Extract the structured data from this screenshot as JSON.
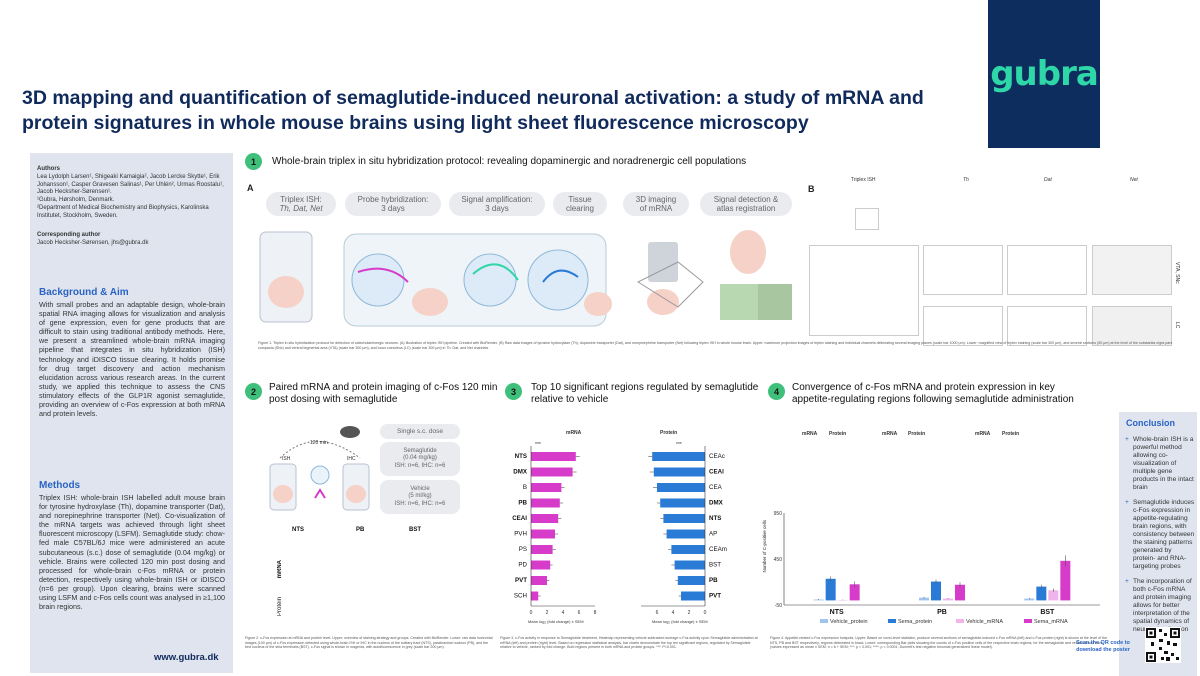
{
  "logo": {
    "text": "gubra"
  },
  "title": "3D mapping and quantification of semaglutide-induced neuronal activation: a study of mRNA and protein signatures in whole mouse brains using light sheet fluorescence microscopy",
  "sidebar": {
    "authors_head": "Authors",
    "authors": "Lea Lydolph Larsen¹, Shigeaki Kamaigia², Jacob Lercke Skytte¹, Erik Johansson¹, Casper Gravesen Salinas¹, Per Uhlén², Urmas Roostalu¹, Jacob Hecksher-Sørensen¹.",
    "affil1": "¹Gubra, Hørsholm, Denmark.",
    "affil2": "²Department of Medical Biochemistry and Biophysics, Karolinska Institutet, Stockholm, Sweden.",
    "corr_head": "Corresponding author",
    "corr": "Jacob Hecksher-Sørensen, jhs@gubra.dk",
    "bg_head": "Background & Aim",
    "bg_body": "With small probes and an adaptable design, whole-brain spatial RNA imaging allows for visualization and analysis of gene expression, even for gene products that are difficult to stain using traditional antibody methods. Here, we present a streamlined whole-brain mRNA imaging pipeline that integrates in situ hybridization (ISH) technology and iDISCO tissue clearing. It holds promise for drug target discovery and action mechanism elucidation across various research areas. In the current study, we applied this technique to assess the CNS stimulatory effects of the GLP1R agonist semaglutide, providing an overview of c-Fos expression at both mRNA and protein levels.",
    "methods_head": "Methods",
    "methods_body": "Triplex ISH: whole-brain ISH labelled adult mouse brain for tyrosine hydroxylase (Th), dopamine transporter (Dat), and norepinephrine transporter (Net). Co-visualization of the mRNA targets was achieved through light sheet fluorescent microscopy (LSFM). Semaglutide study: chow-fed male C57BL/6J mice were administered an acute subcutaneous (s.c.) dose of semaglutide (0.04 mg/kg) or vehicle. Brains were collected 120 min post dosing and processed for whole-brain c-Fos mRNA or protein detection, respectively using whole-brain ISH or iDISCO (n=6 per group). Upon clearing, brains were scanned using LSFM and c-Fos cells count was analysed in ≥1,100 brain regions.",
    "website": "www.gubra.dk"
  },
  "section1": {
    "num": "1",
    "title": "Whole-brain triplex in situ hybridization protocol: revealing dopaminergic and noradrenergic cell populations",
    "panel_a": "A",
    "panel_b": "B",
    "steps": [
      {
        "l1": "Triplex ISH:",
        "l2": "Th, Dat, Net"
      },
      {
        "l1": "Probe hybridization:",
        "l2": "3 days"
      },
      {
        "l1": "Signal amplification:",
        "l2": "3 days"
      },
      {
        "l1": "Tissue",
        "l2": "clearing"
      },
      {
        "l1": "3D imaging",
        "l2": "of mRNA"
      },
      {
        "l1": "Signal detection &",
        "l2": "atlas registration"
      }
    ],
    "b_cols": [
      "Triplex ISH",
      "Th",
      "Dat",
      "Net"
    ],
    "b_rows": [
      "VTA, SNc",
      "LC"
    ],
    "caption": "Figure 1. Triplex in situ hybridization protocol for detection of catecholaminergic neurons. (A) Illustration of triplex ISH pipeline. Created with BioRender. (B) Raw data images of tyrosine hydroxylase (Th), dopamine transporter (Dat), and norepinephrine transporter (Net) following triplex ISH in whole mouse brain. Upper: maximum projection images of triplex staining and individual channels delineating several imaging planes (scale bar 1000 µm). Lower: magnified view of triplex staining (scale bar 300 µm), and several sections (50 µm) at the level of the substantia nigra pars compacta (SNc) and ventral tegmental area (VTA) (scale bar 300 µm), and locus coeruleus (LC) (scale bar 300 µm) in Th, Dat, and Net channels."
  },
  "section2": {
    "num": "2",
    "title": "Paired mRNA and protein imaging of c-Fos 120 min post dosing with semaglutide",
    "time": "120 min",
    "ish": "ISH",
    "ihc": "IHC",
    "dose_head": "Single s.c. dose",
    "sema": {
      "l1": "Semaglutide",
      "l2": "(0.04 mg/kg)",
      "l3": "ISH: n=6, IHC: n=6"
    },
    "veh": {
      "l1": "Vehicle",
      "l2": "(5 ml/kg)",
      "l3": "ISH: n=6, IHC: n=6"
    },
    "cols": [
      "NTS",
      "PB",
      "BST"
    ],
    "rows": [
      "mRNA",
      "Protein"
    ],
    "caption": "Figure 2. c-Fos expression at mRNA and protein level. Upper: overview of staining strategy and groups. Created with BioRender. Lower: raw data horizontal images (100 µm) of c-Fos expression detected using whole-brain ISH or IHC in the nucleus of the solitary tract (NTS), parabrachial nucleus (PB), and the bed nucleus of the stria terminalis (BST). c-Fos signal is shown in magenta, with autofluorescence in grey (scale bar 200 µm)."
  },
  "section3": {
    "num": "3",
    "title": "Top 10 significant regions regulated by semaglutide relative to vehicle",
    "mrna_head": "mRNA",
    "protein_head": "Protein",
    "sig": "***",
    "x_label": "Mean log₂ (fold change) ± SEM",
    "caption": "Figure 3. c-Fos activity in response to Semaglutide treatment. Heatmap representing vehicle subtracted average c-Fos activity upon Semaglutide administration at mRNA (left) and protein (right) level. Based on regression statistical analysis, bar charts demonstrate the top ten significant regions, regulated by Semaglutide relative to vehicle, ranked by fold change. Bold regions present in both mRNA and protein groups. ***: P<0.001."
  },
  "section4": {
    "num": "4",
    "title": "Convergence of c-Fos mRNA and protein expression in key appetite-regulating regions following semaglutide administration",
    "col_heads": [
      "mRNA",
      "Protein",
      "mRNA",
      "Protein",
      "mRNA",
      "Protein"
    ],
    "y_label": "Number of C-positive cells",
    "caption": "Figure 4. Appetite-related c-Fos expression hotspots. Upper: Based on voxel-level statistics, produce several sections of semaglutide-induced c-Fos mRNA (left) and c-Fos protein (right) is shown at the level of the NTS, PB and BST respectively; regions delineated in black. Lower: corresponding Bar plots showing the counts of c-Fos positive cells of the respective brain regions, for the semaglutide and vehicle-dosed mice (values expressed as mean ± SEM, n = 6 + SEM; ***: p < 0.001; ****: p < 0.0001; Dunnett's test negative binomial generalized linear model)."
  },
  "conclusion": {
    "head": "Conclusion",
    "items": [
      "Whole-brain ISH is a powerful method allowing co-visualization of multiple gene products in the intact brain",
      "Semaglutide induces c-Fos expression in appetite-regulating brain regions, with consistency between the staining patterns generated by protein- and RNA-targeting probes",
      "The incorporation of both c-Fos mRNA and protein imaging allows for better interpretation of the spatial dynamics of neuronal activation"
    ],
    "qr_text": "Scan the QR code to download the poster"
  },
  "chart_data": [
    {
      "type": "bar",
      "title": "mRNA",
      "orientation": "horizontal",
      "categories": [
        "NTS",
        "DMX",
        "B",
        "PB",
        "CEAl",
        "PVH",
        "PS",
        "PD",
        "PVT",
        "SCH"
      ],
      "bold": [
        true,
        true,
        false,
        true,
        true,
        false,
        false,
        false,
        true,
        false
      ],
      "values": [
        5.6,
        5.2,
        3.8,
        3.6,
        3.4,
        3.0,
        2.7,
        2.4,
        2.0,
        0.9
      ],
      "errors": [
        0.5,
        0.5,
        0.4,
        0.4,
        0.4,
        0.4,
        0.4,
        0.3,
        0.3,
        0.3
      ],
      "xlim": [
        0,
        8
      ],
      "x_ticks": [
        0,
        2,
        4,
        6,
        8
      ],
      "color": "#d63cc9"
    },
    {
      "type": "bar",
      "title": "Protein",
      "orientation": "horizontal",
      "categories": [
        "CEAc",
        "CEAl",
        "CEA",
        "DMX",
        "NTS",
        "AP",
        "CEAm",
        "BST",
        "PB",
        "PVT"
      ],
      "bold": [
        false,
        true,
        false,
        true,
        true,
        false,
        false,
        false,
        true,
        true
      ],
      "values": [
        6.6,
        6.4,
        6.0,
        5.6,
        5.2,
        4.8,
        4.2,
        3.8,
        3.4,
        3.0
      ],
      "errors": [
        0.5,
        0.5,
        0.5,
        0.4,
        0.4,
        0.4,
        0.4,
        0.4,
        0.3,
        0.3
      ],
      "xlim": [
        0,
        8
      ],
      "x_ticks": [
        6,
        4,
        2,
        0
      ],
      "color": "#2a7bd6"
    },
    {
      "type": "bar",
      "categories": [
        "NTS",
        "PB",
        "BST"
      ],
      "series": [
        {
          "name": "Vehicle_protein",
          "color": "#9fc5ef",
          "values": [
            10,
            30,
            20
          ]
        },
        {
          "name": "Sema_protein",
          "color": "#2a7bd6",
          "values": [
            235,
            205,
            150
          ]
        },
        {
          "name": "Vehicle_mRNA",
          "color": "#f0b3ea",
          "values": [
            5,
            20,
            110
          ]
        },
        {
          "name": "Sema_mRNA",
          "color": "#d63cc9",
          "values": [
            175,
            170,
            430
          ]
        }
      ],
      "errors": [
        [
          5,
          8,
          6
        ],
        [
          25,
          22,
          20
        ],
        [
          4,
          6,
          18
        ],
        [
          30,
          28,
          60
        ]
      ],
      "ylim": [
        -50,
        950
      ],
      "y_ticks": [
        950,
        450,
        -50
      ],
      "ylabel": "Number of C-positive cells"
    }
  ]
}
